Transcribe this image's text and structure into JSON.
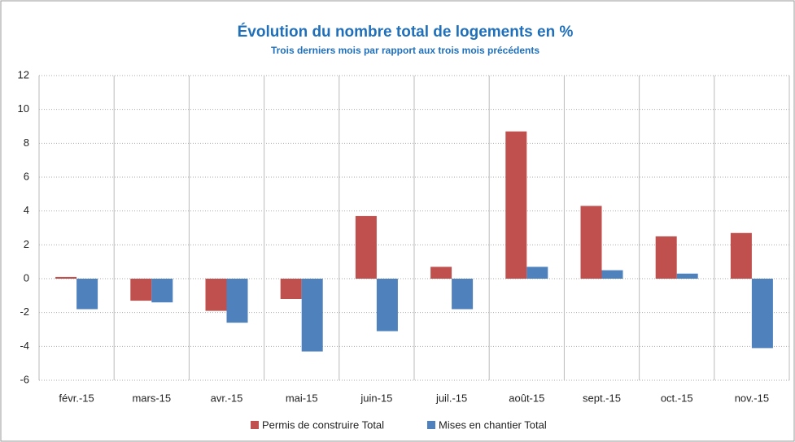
{
  "chart_data": {
    "type": "bar",
    "title": "Évolution du nombre total de logements en %",
    "subtitle": "Trois derniers mois par rapport aux trois mois précédents",
    "categories": [
      "févr.-15",
      "mars-15",
      "avr.-15",
      "mai-15",
      "juin-15",
      "juil.-15",
      "août-15",
      "sept.-15",
      "oct.-15",
      "nov.-15"
    ],
    "series": [
      {
        "name": "Permis de construire Total",
        "color": "#c0504d",
        "values": [
          0.1,
          -1.3,
          -1.9,
          -1.2,
          3.7,
          0.7,
          8.7,
          4.3,
          2.5,
          2.7
        ]
      },
      {
        "name": "Mises en chantier Total",
        "color": "#4f81bd",
        "values": [
          -1.8,
          -1.4,
          -2.6,
          -4.3,
          -3.1,
          -1.8,
          0.7,
          0.5,
          0.3,
          -4.1
        ]
      }
    ],
    "ylim": [
      -6,
      12
    ],
    "yticks": [
      -6,
      -4,
      -2,
      0,
      2,
      4,
      6,
      8,
      10,
      12
    ],
    "grid": true,
    "legend": "bottom"
  }
}
